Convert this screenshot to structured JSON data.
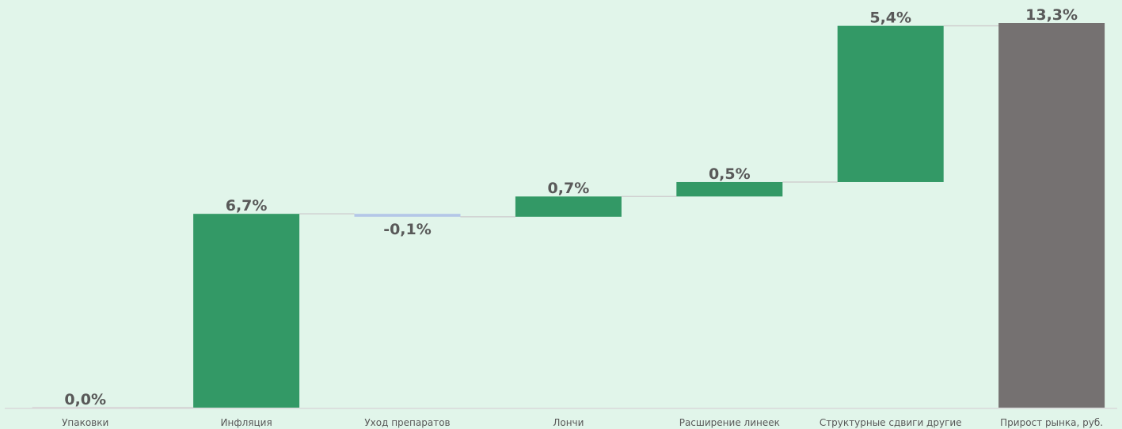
{
  "chart_data": {
    "type": "waterfall",
    "categories": [
      "Упаковки",
      "Инфляция",
      "Уход препаратов",
      "Лончи",
      "Расширение линеек",
      "Структурные сдвиги другие",
      "Прирост рынка, руб."
    ],
    "values": [
      0.0,
      6.7,
      -0.1,
      0.7,
      0.5,
      5.4,
      13.3
    ],
    "value_labels": [
      "0,0%",
      "6,7%",
      "-0,1%",
      "0,7%",
      "0,5%",
      "5,4%",
      "13,3%"
    ],
    "total_index": 6,
    "unit": "%",
    "ylim": [
      0,
      13.3
    ],
    "grid": false,
    "legend": "none",
    "colors": {
      "increase": "#339966",
      "decrease": "#b4c7e7",
      "total": "#757171",
      "connector": "#d0d0d0",
      "axis": "#d9d9d9",
      "label": "#595959",
      "background": "#e1f5ea"
    }
  }
}
